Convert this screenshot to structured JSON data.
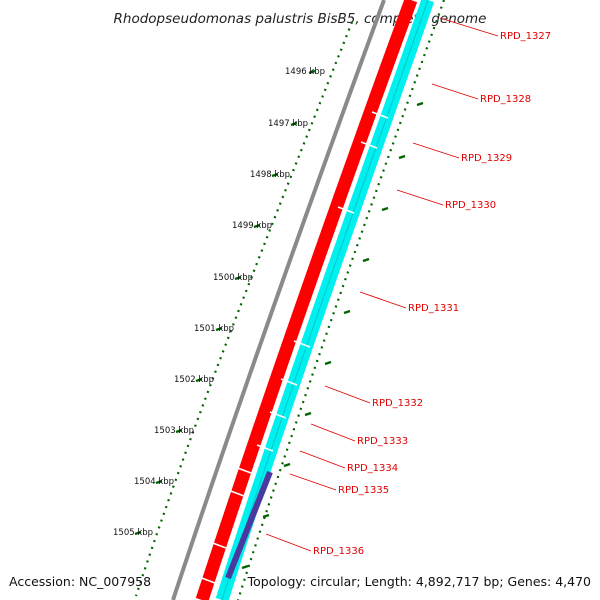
{
  "title": "Rhodopseudomonas palustris BisB5, complete genome",
  "accession": "Accession: NC_007958",
  "summary": "Topology: circular; Length: 4,892,717 bp; Genes: 4,470",
  "colors": {
    "backbone": "#8a8a8a",
    "cds": "#ff0000",
    "cds_border": "#b00000",
    "gc_band": "#00f0f0",
    "gc_band_dark": "#00c8c8",
    "highlight_gene": "#4a3aa0",
    "label": "#e00000",
    "ticks": "#006400"
  },
  "kbp_labels": [
    "1496 kbp",
    "1497 kbp",
    "1498 kbp",
    "1499 kbp",
    "1500 kbp",
    "1501 kbp",
    "1502 kbp",
    "1503 kbp",
    "1504 kbp",
    "1505 kbp"
  ],
  "genes": [
    "RPD_1327",
    "RPD_1328",
    "RPD_1329",
    "RPD_1330",
    "RPD_1331",
    "RPD_1332",
    "RPD_1333",
    "RPD_1334",
    "RPD_1335",
    "RPD_1336"
  ]
}
